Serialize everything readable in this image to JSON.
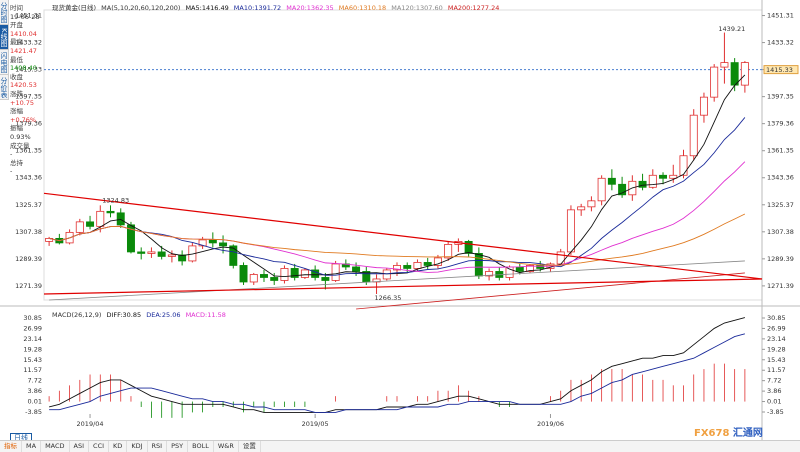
{
  "sidebar": {
    "tabs": [
      "分时图",
      "K线图",
      "闪电图",
      "分价表"
    ]
  },
  "info": {
    "time_label": "时间",
    "date": "19-06-28",
    "open_label": "开盘",
    "open": "1410.04",
    "high_label": "最高",
    "high": "1421.47",
    "low_label": "最低",
    "low": "1408.40",
    "close_label": "收盘",
    "close": "1420.53",
    "change_label": "涨跌",
    "change": "+10.75",
    "pct_label": "涨幅",
    "pct": "+0.76%",
    "amp_label": "振幅",
    "amp": "0.93%",
    "vol_label": "成交量",
    "vol": "-",
    "hold_label": "总持",
    "hold": "-"
  },
  "legend": {
    "symbol": "现货黄金(日线)",
    "ma_params": "MA(5,10,20,60,120,200)",
    "ma5": "MA5:1416.49",
    "ma10": "MA10:1391.72",
    "ma20": "MA20:1362.35",
    "ma60": "MA60:1310.18",
    "ma120": "MA120:1307.60",
    "ma200": "MA200:1277.24"
  },
  "macd_legend": {
    "params": "MACD(26,12,9)",
    "diff": "DIFF:30.85",
    "dea": "DEA:25.06",
    "macd": "MACD:11.58"
  },
  "annotations": {
    "high_mark": "1439.21",
    "left_high_mark": "1324.83",
    "low_mark": "1266.35",
    "current_price": "1415.33"
  },
  "price_axis": [
    "1451.31",
    "1433.32",
    "1415.33",
    "1397.35",
    "1379.36",
    "1361.35",
    "1343.36",
    "1325.37",
    "1307.38",
    "1289.39",
    "1271.39"
  ],
  "macd_axis": [
    "30.85",
    "26.99",
    "23.14",
    "19.28",
    "15.43",
    "11.57",
    "7.72",
    "3.86",
    "0.01",
    "-3.85"
  ],
  "months": [
    "2019/04",
    "2019/05",
    "2019/06"
  ],
  "range_label": "日线",
  "indicator_tabs": [
    "指标",
    "MA",
    "MACD",
    "ASI",
    "CCI",
    "KD",
    "KDJ",
    "RSI",
    "PSY",
    "BOLL",
    "W&R",
    "设置"
  ],
  "watermark": {
    "a": "FX678",
    "b": "汇通网"
  },
  "colors": {
    "up": "#e03030",
    "down": "#0a8a0a",
    "ma5": "#111111",
    "ma10": "#1a2a9a",
    "ma20": "#e030d0",
    "ma60": "#e07a20",
    "ma120": "#888888",
    "ma200": "#cc2020"
  },
  "chart_data": {
    "type": "candlestick",
    "ylim": [
      1262,
      1455
    ],
    "candles": [
      [
        1301,
        1304,
        1298,
        1303
      ],
      [
        1303,
        1306,
        1299,
        1300
      ],
      [
        1300,
        1309,
        1299,
        1307
      ],
      [
        1307,
        1316,
        1305,
        1314
      ],
      [
        1314,
        1318,
        1309,
        1311
      ],
      [
        1311,
        1325,
        1307,
        1321
      ],
      [
        1321,
        1325,
        1317,
        1320
      ],
      [
        1320,
        1323,
        1310,
        1312
      ],
      [
        1312,
        1314,
        1293,
        1294
      ],
      [
        1294,
        1297,
        1289,
        1293
      ],
      [
        1293,
        1297,
        1290,
        1294
      ],
      [
        1294,
        1298,
        1289,
        1291
      ],
      [
        1291,
        1295,
        1287,
        1292
      ],
      [
        1292,
        1295,
        1285,
        1288
      ],
      [
        1288,
        1300,
        1287,
        1298
      ],
      [
        1298,
        1304,
        1296,
        1302
      ],
      [
        1302,
        1307,
        1297,
        1300
      ],
      [
        1300,
        1305,
        1293,
        1298
      ],
      [
        1298,
        1299,
        1283,
        1285
      ],
      [
        1285,
        1287,
        1272,
        1274
      ],
      [
        1274,
        1280,
        1272,
        1279
      ],
      [
        1279,
        1282,
        1274,
        1277
      ],
      [
        1277,
        1280,
        1272,
        1275
      ],
      [
        1275,
        1285,
        1273,
        1283
      ],
      [
        1283,
        1286,
        1275,
        1277
      ],
      [
        1277,
        1283,
        1276,
        1282
      ],
      [
        1282,
        1285,
        1275,
        1277
      ],
      [
        1277,
        1280,
        1269,
        1275
      ],
      [
        1275,
        1288,
        1274,
        1286
      ],
      [
        1286,
        1289,
        1282,
        1284
      ],
      [
        1284,
        1287,
        1278,
        1281
      ],
      [
        1281,
        1284,
        1272,
        1274
      ],
      [
        1274,
        1279,
        1266,
        1276
      ],
      [
        1276,
        1283,
        1275,
        1282
      ],
      [
        1282,
        1287,
        1278,
        1285
      ],
      [
        1285,
        1287,
        1280,
        1283
      ],
      [
        1283,
        1289,
        1281,
        1287
      ],
      [
        1287,
        1290,
        1282,
        1285
      ],
      [
        1285,
        1292,
        1283,
        1290
      ],
      [
        1290,
        1301,
        1288,
        1299
      ],
      [
        1299,
        1303,
        1294,
        1301
      ],
      [
        1301,
        1302,
        1291,
        1293
      ],
      [
        1293,
        1297,
        1276,
        1278
      ],
      [
        1278,
        1283,
        1275,
        1281
      ],
      [
        1281,
        1284,
        1275,
        1277
      ],
      [
        1277,
        1285,
        1275,
        1284
      ],
      [
        1284,
        1286,
        1279,
        1281
      ],
      [
        1281,
        1286,
        1280,
        1285
      ],
      [
        1285,
        1288,
        1281,
        1283
      ],
      [
        1283,
        1287,
        1281,
        1286
      ],
      [
        1286,
        1296,
        1285,
        1294
      ],
      [
        1294,
        1325,
        1292,
        1322
      ],
      [
        1322,
        1326,
        1318,
        1324
      ],
      [
        1324,
        1331,
        1321,
        1328
      ],
      [
        1328,
        1345,
        1325,
        1343
      ],
      [
        1343,
        1349,
        1335,
        1339
      ],
      [
        1339,
        1344,
        1330,
        1332
      ],
      [
        1332,
        1345,
        1328,
        1341
      ],
      [
        1341,
        1346,
        1335,
        1337
      ],
      [
        1337,
        1349,
        1336,
        1345
      ],
      [
        1345,
        1347,
        1339,
        1343
      ],
      [
        1343,
        1352,
        1340,
        1345
      ],
      [
        1345,
        1362,
        1343,
        1358
      ],
      [
        1358,
        1389,
        1355,
        1385
      ],
      [
        1385,
        1400,
        1380,
        1397
      ],
      [
        1397,
        1419,
        1394,
        1417
      ],
      [
        1417,
        1440,
        1406,
        1420
      ],
      [
        1420,
        1423,
        1401,
        1405
      ],
      [
        1405,
        1421,
        1400,
        1420
      ]
    ],
    "macd": [
      {
        "diff": [
          -2,
          -1,
          1,
          3,
          5,
          7,
          8,
          8,
          6,
          4,
          2,
          1,
          0,
          -1,
          -1,
          -1,
          -1,
          -1,
          -2,
          -3,
          -3,
          -4,
          -4,
          -4,
          -4,
          -4,
          -4,
          -4,
          -3,
          -3,
          -3,
          -3,
          -3,
          -2,
          -2,
          -2,
          -1,
          -1,
          0,
          1,
          2,
          2,
          1,
          0,
          -1,
          -1,
          -1,
          -1,
          -1,
          0,
          1,
          4,
          6,
          8,
          11,
          13,
          14,
          15,
          16,
          16,
          17,
          17,
          18,
          21,
          24,
          27,
          29,
          30,
          31
        ]
      },
      {
        "dea": [
          -3,
          -3,
          -2,
          -1,
          0,
          2,
          3,
          4,
          5,
          5,
          5,
          4,
          3,
          2,
          1,
          1,
          0,
          0,
          -1,
          -1,
          -2,
          -2,
          -3,
          -3,
          -3,
          -3,
          -4,
          -4,
          -4,
          -3,
          -3,
          -3,
          -3,
          -3,
          -3,
          -2,
          -2,
          -2,
          -2,
          -1,
          -1,
          0,
          0,
          0,
          0,
          0,
          -1,
          -1,
          -1,
          -1,
          -1,
          0,
          2,
          3,
          5,
          7,
          8,
          10,
          11,
          12,
          13,
          14,
          15,
          16,
          18,
          20,
          22,
          24,
          25
        ]
      }
    ]
  }
}
